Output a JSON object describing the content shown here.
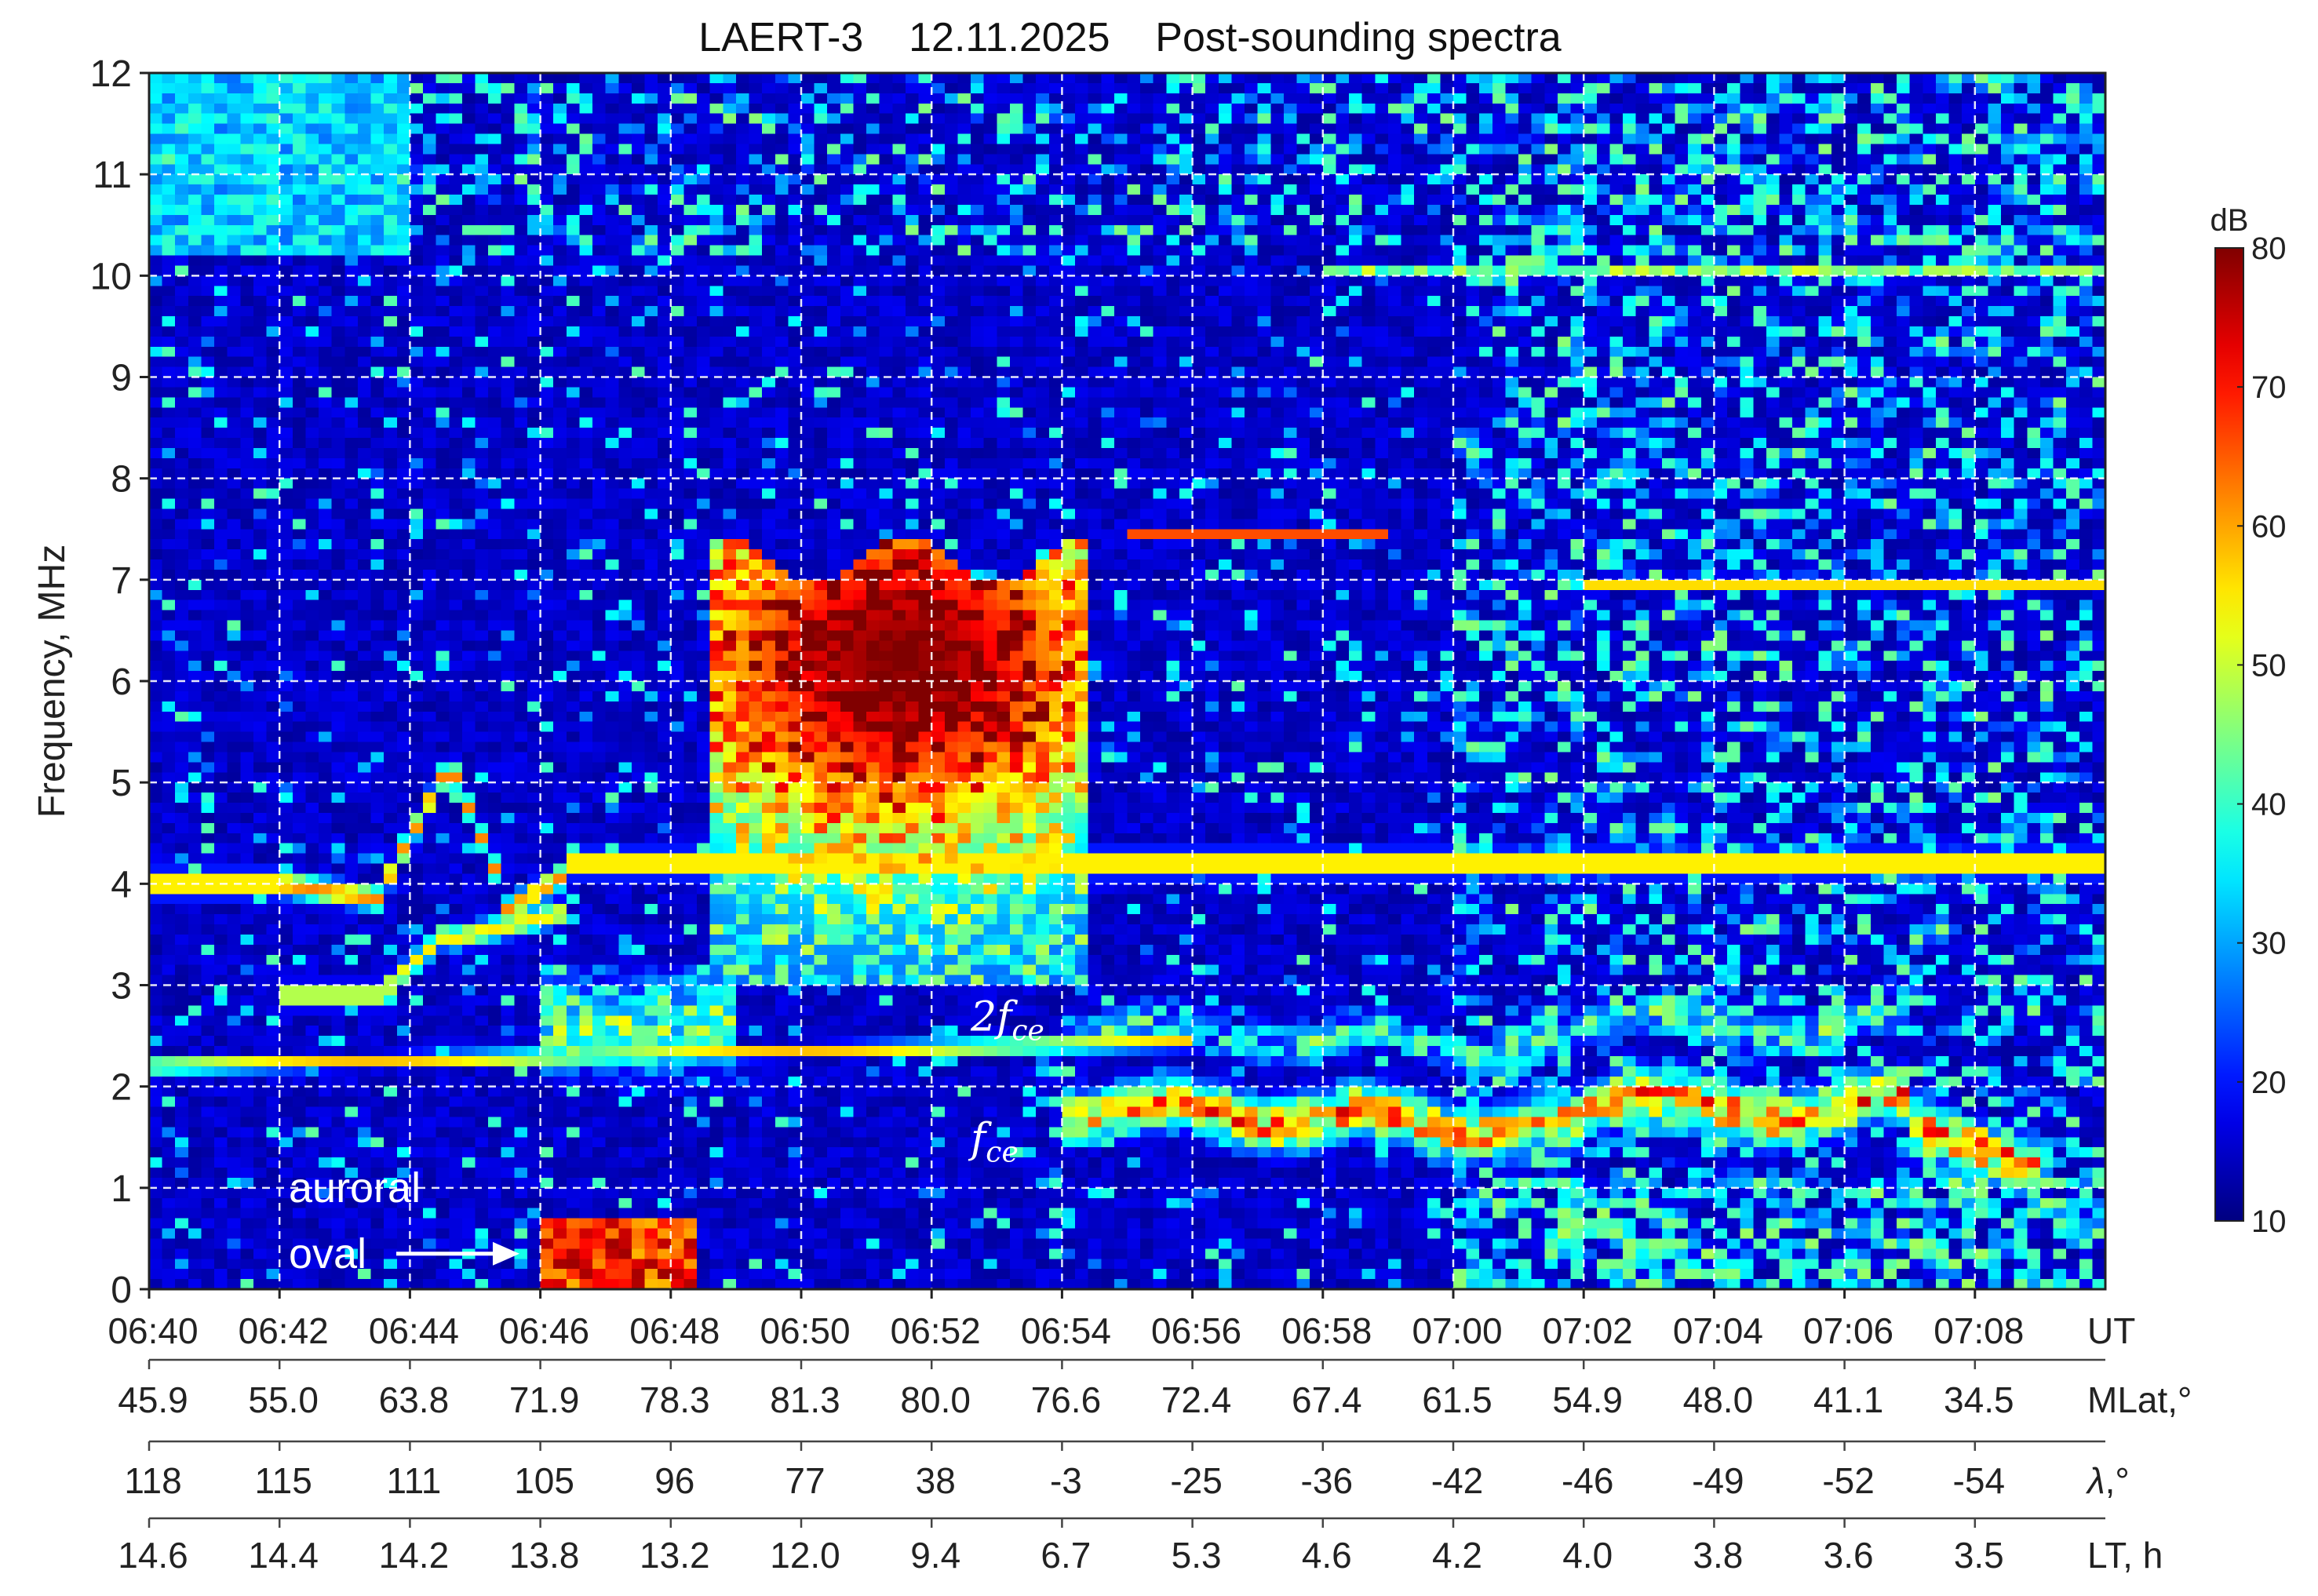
{
  "chart_data": {
    "type": "heatmap",
    "title": "LAERT-3    12.11.2025    Post-sounding spectra",
    "ylabel": "Frequency, MHz",
    "ylim": [
      0,
      12
    ],
    "y_ticks": [
      "0",
      "1",
      "2",
      "3",
      "4",
      "5",
      "6",
      "7",
      "8",
      "9",
      "10",
      "11",
      "12"
    ],
    "xlim": [
      "06:40",
      "07:10"
    ],
    "grid": true,
    "colorbar": {
      "label": "dB",
      "range": [
        10,
        80
      ],
      "ticks": [
        "80",
        "70",
        "60",
        "50",
        "40",
        "30",
        "20",
        "10"
      ],
      "colormap": "jet"
    },
    "x_axes": [
      {
        "name": "UT",
        "labels": [
          "06:40",
          "06:42",
          "06:44",
          "06:46",
          "06:48",
          "06:50",
          "06:52",
          "06:54",
          "06:56",
          "06:58",
          "07:00",
          "07:02",
          "07:04",
          "07:06",
          "07:08"
        ]
      },
      {
        "name": "MLat,°",
        "labels": [
          "45.9",
          "55.0",
          "63.8",
          "71.9",
          "78.3",
          "81.3",
          "80.0",
          "76.6",
          "72.4",
          "67.4",
          "61.5",
          "54.9",
          "48.0",
          "41.1",
          "34.5"
        ]
      },
      {
        "name": "λ,°",
        "labels": [
          "118",
          "115",
          "111",
          "105",
          "96",
          "77",
          "38",
          "-3",
          "-25",
          "-36",
          "-42",
          "-46",
          "-49",
          "-52",
          "-54"
        ]
      },
      {
        "name": "LT, h",
        "labels": [
          "14.6",
          "14.4",
          "14.2",
          "13.8",
          "13.2",
          "12.0",
          "9.4",
          "6.7",
          "5.3",
          "4.6",
          "4.2",
          "4.0",
          "3.8",
          "3.6",
          "3.5"
        ]
      }
    ],
    "annotations": {
      "two_fce": {
        "main": "2f",
        "sub": "ce",
        "time_min": 12.6,
        "freq": 2.55
      },
      "fce": {
        "main": "f",
        "sub": "ce",
        "time_min": 12.6,
        "freq": 1.35
      },
      "auroral_oval": {
        "line1": "auroral",
        "line2": "oval",
        "arrow_to_time_min": 5.8,
        "freq": 0.35
      }
    }
  }
}
